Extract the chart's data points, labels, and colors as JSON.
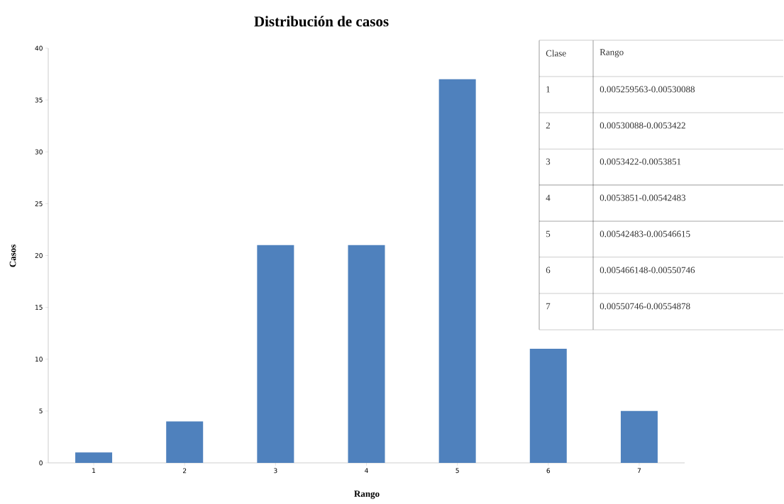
{
  "chart_data": {
    "type": "bar",
    "title": "Distribución de casos",
    "xlabel": "Rango",
    "ylabel": "Casos",
    "categories": [
      "1",
      "2",
      "3",
      "4",
      "5",
      "6",
      "7"
    ],
    "values": [
      1,
      4,
      21,
      21,
      37,
      11,
      5
    ],
    "color": "#4f81bd",
    "ylim": [
      0,
      40
    ],
    "yticks": [
      0,
      5,
      10,
      15,
      20,
      25,
      30,
      35,
      40
    ],
    "annotations": [
      "Clase",
      "Rango",
      "1",
      "0.005259563-0.00530088",
      "2",
      "0.00530088-0.0053422",
      "3",
      "0.0053422-0.0053851",
      "4",
      "0.0053851-0.00542483",
      "5",
      "0.00542483-0.00546615",
      "6",
      "0.005466148-0.00550746",
      "7",
      "0.00550746-0.00554878"
    ]
  }
}
